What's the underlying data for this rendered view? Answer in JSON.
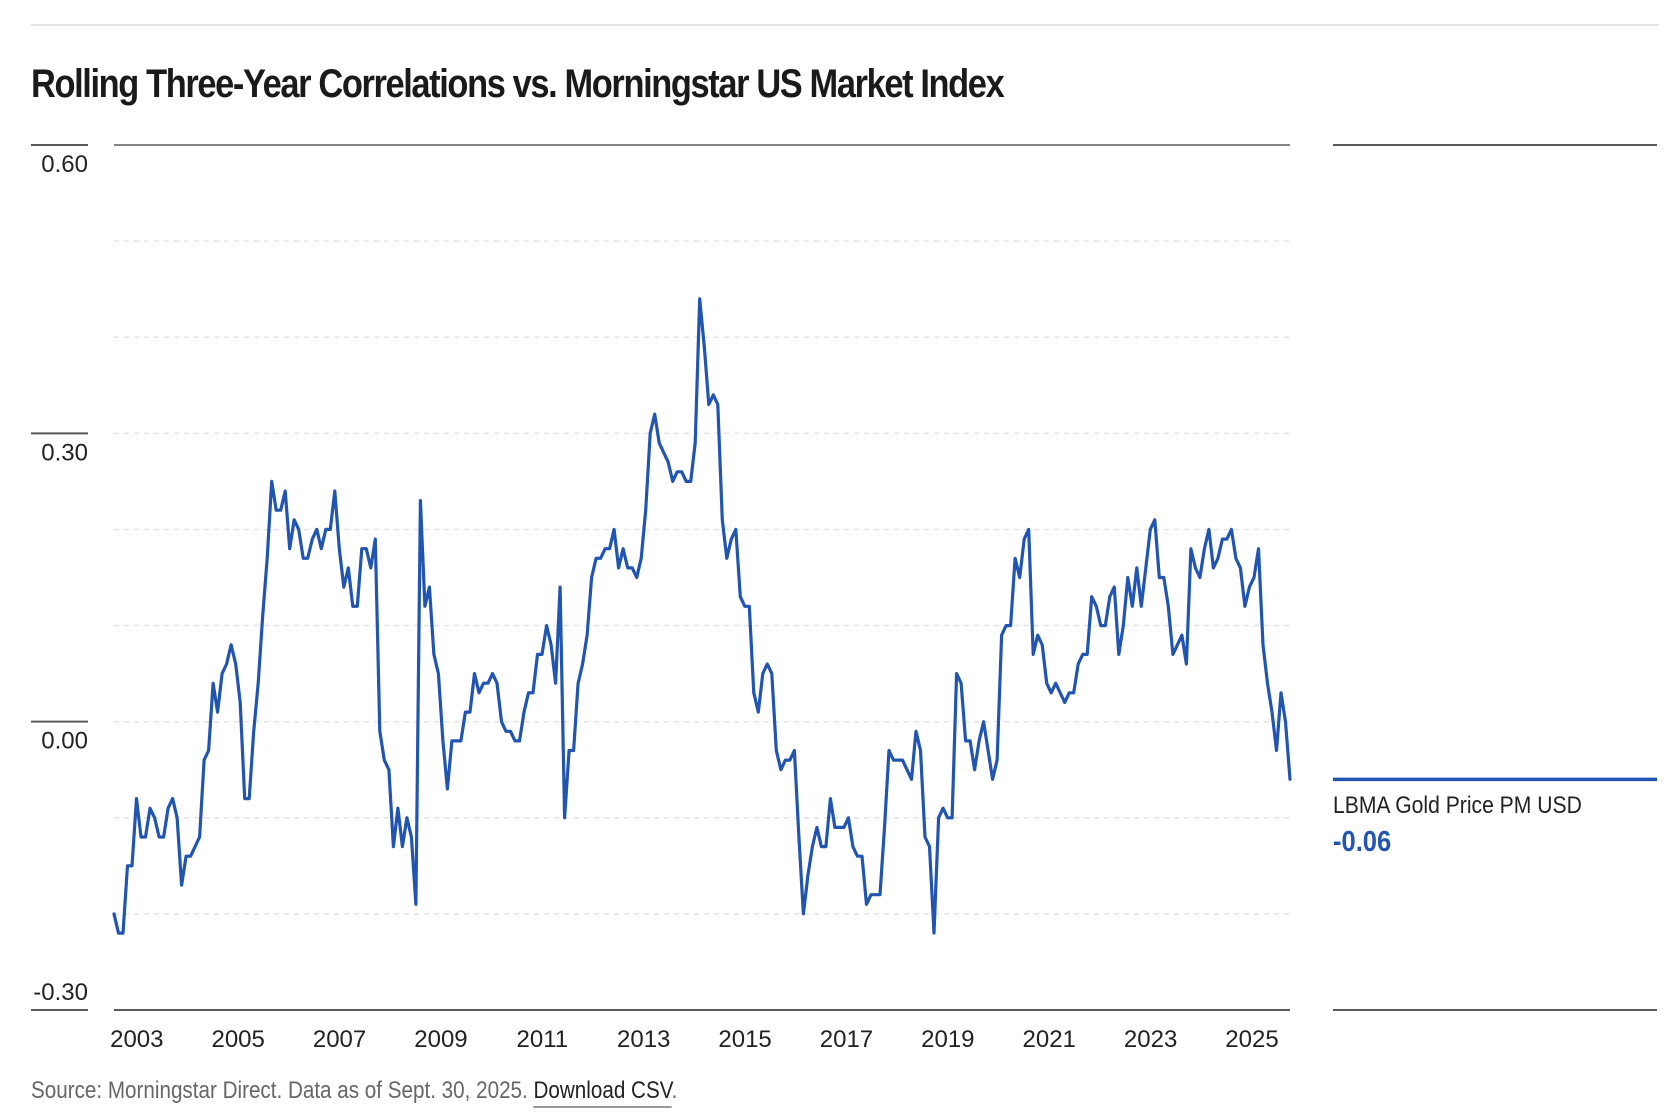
{
  "title": "Rolling Three-Year Correlations vs. Morningstar US Market Index",
  "legend": {
    "series_name": "LBMA Gold Price PM USD",
    "latest_value": "-0.06"
  },
  "footer": {
    "source_text": "Source: Morningstar Direct. Data as of Sept. 30, 2025.",
    "download_link": "Download CSV",
    "trailing_period": "."
  },
  "colors": {
    "series": "#2155b0",
    "axis_rule": "#5a5a5a",
    "gridline": "#e3e3e3"
  },
  "chart_data": {
    "type": "line",
    "title": "Rolling Three-Year Correlations vs. Morningstar US Market Index",
    "xlabel": "",
    "ylabel": "",
    "ylim": [
      -0.3,
      0.6
    ],
    "yticks": [
      0.6,
      0.3,
      0.0,
      -0.3
    ],
    "ytick_labels": [
      "0.60",
      "0.30",
      "0.00",
      "-0.30"
    ],
    "y_gridlines": [
      0.5,
      0.4,
      0.3,
      0.2,
      0.1,
      0.0,
      -0.1,
      -0.2
    ],
    "grid": true,
    "xlim": [
      2002.55,
      2025.75
    ],
    "xticks": [
      2003,
      2005,
      2007,
      2009,
      2011,
      2013,
      2015,
      2017,
      2019,
      2021,
      2023,
      2025
    ],
    "xtick_labels": [
      "2003",
      "2005",
      "2007",
      "2009",
      "2011",
      "2013",
      "2015",
      "2017",
      "2019",
      "2021",
      "2023",
      "2025"
    ],
    "legend_position": "right",
    "series": [
      {
        "name": "LBMA Gold Price PM USD",
        "x_start": 2002.55,
        "x_end": 2025.75,
        "values": [
          -0.2,
          -0.22,
          -0.22,
          -0.15,
          -0.15,
          -0.08,
          -0.12,
          -0.12,
          -0.09,
          -0.1,
          -0.12,
          -0.12,
          -0.09,
          -0.08,
          -0.1,
          -0.17,
          -0.14,
          -0.14,
          -0.13,
          -0.12,
          -0.04,
          -0.03,
          0.04,
          0.01,
          0.05,
          0.06,
          0.08,
          0.06,
          0.02,
          -0.08,
          -0.08,
          -0.01,
          0.04,
          0.11,
          0.17,
          0.25,
          0.22,
          0.22,
          0.24,
          0.18,
          0.21,
          0.2,
          0.17,
          0.17,
          0.19,
          0.2,
          0.18,
          0.2,
          0.2,
          0.24,
          0.18,
          0.14,
          0.16,
          0.12,
          0.12,
          0.18,
          0.18,
          0.16,
          0.19,
          -0.01,
          -0.04,
          -0.05,
          -0.13,
          -0.09,
          -0.13,
          -0.1,
          -0.12,
          -0.19,
          0.23,
          0.12,
          0.14,
          0.07,
          0.05,
          -0.02,
          -0.07,
          -0.02,
          -0.02,
          -0.02,
          0.01,
          0.01,
          0.05,
          0.03,
          0.04,
          0.04,
          0.05,
          0.04,
          0.0,
          -0.01,
          -0.01,
          -0.02,
          -0.02,
          0.01,
          0.03,
          0.03,
          0.07,
          0.07,
          0.1,
          0.08,
          0.04,
          0.14,
          -0.1,
          -0.03,
          -0.03,
          0.04,
          0.06,
          0.09,
          0.15,
          0.17,
          0.17,
          0.18,
          0.18,
          0.2,
          0.16,
          0.18,
          0.16,
          0.16,
          0.15,
          0.17,
          0.22,
          0.3,
          0.32,
          0.29,
          0.28,
          0.27,
          0.25,
          0.26,
          0.26,
          0.25,
          0.25,
          0.29,
          0.44,
          0.39,
          0.33,
          0.34,
          0.33,
          0.21,
          0.17,
          0.19,
          0.2,
          0.13,
          0.12,
          0.12,
          0.03,
          0.01,
          0.05,
          0.06,
          0.05,
          -0.03,
          -0.05,
          -0.04,
          -0.04,
          -0.03,
          -0.12,
          -0.2,
          -0.16,
          -0.13,
          -0.11,
          -0.13,
          -0.13,
          -0.08,
          -0.11,
          -0.11,
          -0.11,
          -0.1,
          -0.13,
          -0.14,
          -0.14,
          -0.19,
          -0.18,
          -0.18,
          -0.18,
          -0.11,
          -0.03,
          -0.04,
          -0.04,
          -0.04,
          -0.05,
          -0.06,
          -0.01,
          -0.03,
          -0.12,
          -0.13,
          -0.22,
          -0.1,
          -0.09,
          -0.1,
          -0.1,
          0.05,
          0.04,
          -0.02,
          -0.02,
          -0.05,
          -0.02,
          0.0,
          -0.03,
          -0.06,
          -0.04,
          0.09,
          0.1,
          0.1,
          0.17,
          0.15,
          0.19,
          0.2,
          0.07,
          0.09,
          0.08,
          0.04,
          0.03,
          0.04,
          0.03,
          0.02,
          0.03,
          0.03,
          0.06,
          0.07,
          0.07,
          0.13,
          0.12,
          0.1,
          0.1,
          0.13,
          0.14,
          0.07,
          0.1,
          0.15,
          0.12,
          0.16,
          0.12,
          0.16,
          0.2,
          0.21,
          0.15,
          0.15,
          0.12,
          0.07,
          0.08,
          0.09,
          0.06,
          0.18,
          0.16,
          0.15,
          0.18,
          0.2,
          0.16,
          0.17,
          0.19,
          0.19,
          0.2,
          0.17,
          0.16,
          0.12,
          0.14,
          0.15,
          0.18,
          0.08,
          0.04,
          0.01,
          -0.03,
          0.03,
          0.0,
          -0.06
        ]
      }
    ]
  }
}
